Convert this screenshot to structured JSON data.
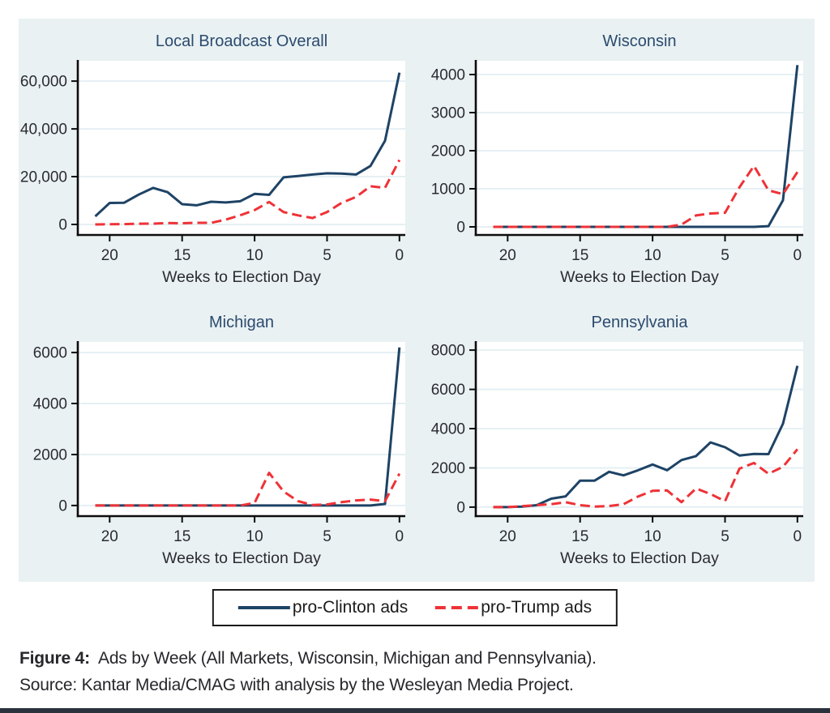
{
  "page": {
    "background": "#ffffff",
    "figure_panel_background": "#e9f1f2",
    "bottom_bar_color": "#2a323c"
  },
  "colors": {
    "clinton": "#1e4365",
    "trump": "#ef3237",
    "grid": "#e2eef3",
    "axis": "#0d0d0d",
    "title": "#2c4a70",
    "label": "#2b2b33"
  },
  "legend": {
    "clinton_label": "pro-Clinton ads",
    "trump_label": "pro-Trump ads"
  },
  "caption": {
    "figure_label": "Figure 4:",
    "figure_text": "Ads by Week (All Markets, Wisconsin, Michigan and Pennsylvania).",
    "source_text": "Source: Kantar Media/CMAG with analysis by the Wesleyan Media Project."
  },
  "chart_data": [
    {
      "type": "line",
      "title": "Local Broadcast Overall",
      "xlabel": "Weeks to Election Day",
      "x_weeks": [
        21,
        20,
        19,
        18,
        17,
        16,
        15,
        14,
        13,
        12,
        11,
        10,
        9,
        8,
        7,
        6,
        5,
        4,
        3,
        2,
        1,
        0
      ],
      "xticks": [
        20,
        15,
        10,
        5,
        0
      ],
      "xlim": [
        22.2,
        -0.4
      ],
      "ylim": [
        -4400,
        68500
      ],
      "yticks": [
        0,
        20000,
        40000,
        60000
      ],
      "ytick_labels": [
        "0",
        "20,000",
        "40,000",
        "60,000"
      ],
      "grid": true,
      "legend_position": "bottom-outside",
      "series": [
        {
          "name": "pro-Clinton ads",
          "style": "solid",
          "color": "#1e4365",
          "data_name": "clinton-line",
          "values": [
            3400,
            9000,
            9100,
            12500,
            15300,
            13500,
            8500,
            8000,
            9500,
            9200,
            9700,
            12800,
            12400,
            19700,
            20300,
            20900,
            21400,
            21300,
            20900,
            24500,
            35000,
            63500
          ]
        },
        {
          "name": "pro-Trump ads",
          "style": "dashed",
          "color": "#ef3237",
          "data_name": "trump-line",
          "values": [
            0,
            100,
            150,
            300,
            350,
            600,
            500,
            700,
            700,
            2000,
            3800,
            6000,
            9400,
            5200,
            3800,
            2700,
            5200,
            9000,
            11500,
            16000,
            15300,
            27000
          ]
        }
      ]
    },
    {
      "type": "line",
      "title": "Wisconsin",
      "xlabel": "Weeks to Election Day",
      "x_weeks": [
        21,
        20,
        19,
        18,
        17,
        16,
        15,
        14,
        13,
        12,
        11,
        10,
        9,
        8,
        7,
        6,
        5,
        4,
        3,
        2,
        1,
        0
      ],
      "xticks": [
        20,
        15,
        10,
        5,
        0
      ],
      "xlim": [
        22.2,
        -0.4
      ],
      "ylim": [
        -213,
        4362
      ],
      "yticks": [
        0,
        1000,
        2000,
        3000,
        4000
      ],
      "ytick_labels": [
        "0",
        "1000",
        "2000",
        "3000",
        "4000"
      ],
      "grid": true,
      "legend_position": "bottom-outside",
      "series": [
        {
          "name": "pro-Clinton ads",
          "style": "solid",
          "color": "#1e4365",
          "data_name": "clinton-line",
          "values": [
            0,
            0,
            0,
            0,
            0,
            0,
            0,
            0,
            0,
            0,
            0,
            0,
            0,
            0,
            0,
            0,
            0,
            0,
            0,
            20,
            700,
            4250
          ]
        },
        {
          "name": "pro-Trump ads",
          "style": "dashed",
          "color": "#ef3237",
          "data_name": "trump-line",
          "values": [
            0,
            0,
            0,
            0,
            0,
            0,
            0,
            0,
            0,
            0,
            0,
            0,
            0,
            60,
            300,
            350,
            370,
            1040,
            1600,
            960,
            860,
            1440
          ]
        }
      ]
    },
    {
      "type": "line",
      "title": "Michigan",
      "xlabel": "Weeks to Election Day",
      "x_weeks": [
        21,
        20,
        19,
        18,
        17,
        16,
        15,
        14,
        13,
        12,
        11,
        10,
        9,
        8,
        7,
        6,
        5,
        4,
        3,
        2,
        1,
        0
      ],
      "xticks": [
        20,
        15,
        10,
        5,
        0
      ],
      "xlim": [
        22.2,
        -0.4
      ],
      "ylim": [
        -417,
        6417
      ],
      "yticks": [
        0,
        2000,
        4000,
        6000
      ],
      "ytick_labels": [
        "0",
        "2000",
        "4000",
        "6000"
      ],
      "grid": true,
      "legend_position": "bottom-outside",
      "series": [
        {
          "name": "pro-Clinton ads",
          "style": "solid",
          "color": "#1e4365",
          "data_name": "clinton-line",
          "values": [
            0,
            0,
            0,
            0,
            0,
            0,
            0,
            0,
            0,
            0,
            0,
            0,
            0,
            0,
            0,
            0,
            0,
            0,
            0,
            0,
            60,
            6200
          ]
        },
        {
          "name": "pro-Trump ads",
          "style": "dashed",
          "color": "#ef3237",
          "data_name": "trump-line",
          "values": [
            0,
            0,
            0,
            0,
            0,
            0,
            0,
            0,
            0,
            0,
            0,
            100,
            1280,
            550,
            170,
            20,
            40,
            130,
            200,
            230,
            170,
            1250
          ]
        }
      ]
    },
    {
      "type": "line",
      "title": "Pennsylvania",
      "xlabel": "Weeks to Election Day",
      "x_weeks": [
        21,
        20,
        19,
        18,
        17,
        16,
        15,
        14,
        13,
        12,
        11,
        10,
        9,
        8,
        7,
        6,
        5,
        4,
        3,
        2,
        1,
        0
      ],
      "xticks": [
        20,
        15,
        10,
        5,
        0
      ],
      "xlim": [
        22.2,
        -0.4
      ],
      "ylim": [
        -458,
        8417
      ],
      "yticks": [
        0,
        2000,
        4000,
        6000,
        8000
      ],
      "ytick_labels": [
        "0",
        "2000",
        "4000",
        "6000",
        "8000"
      ],
      "grid": true,
      "legend_position": "bottom-outside",
      "series": [
        {
          "name": "pro-Clinton ads",
          "style": "solid",
          "color": "#1e4365",
          "data_name": "clinton-line",
          "values": [
            0,
            0,
            30,
            100,
            430,
            550,
            1350,
            1350,
            1800,
            1620,
            1880,
            2170,
            1880,
            2400,
            2600,
            3300,
            3050,
            2630,
            2710,
            2700,
            4250,
            7200
          ]
        },
        {
          "name": "pro-Trump ads",
          "style": "dashed",
          "color": "#ef3237",
          "data_name": "trump-line",
          "values": [
            0,
            0,
            50,
            100,
            150,
            250,
            100,
            30,
            60,
            150,
            540,
            830,
            850,
            250,
            950,
            670,
            300,
            1960,
            2250,
            1700,
            2050,
            2950
          ]
        }
      ]
    }
  ]
}
